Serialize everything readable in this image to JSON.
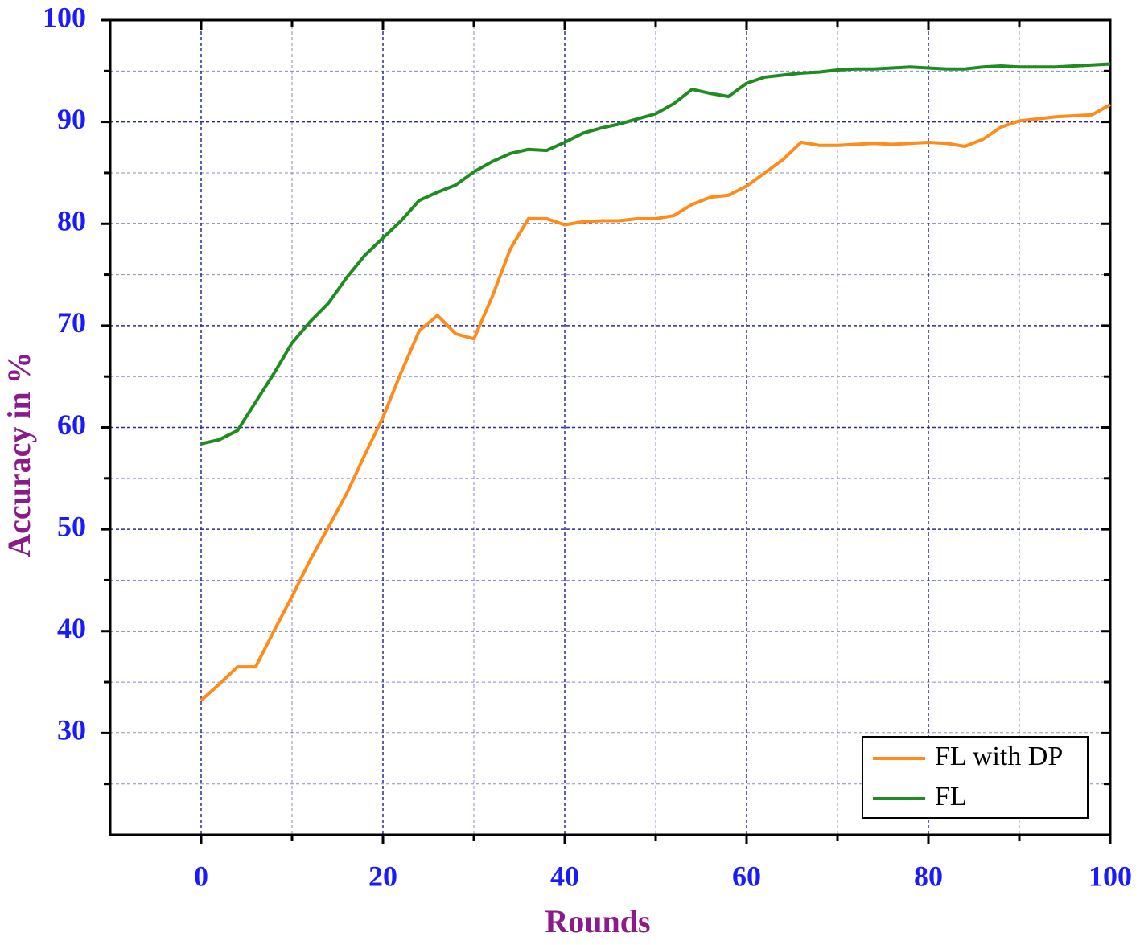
{
  "chart_data": {
    "type": "line",
    "x_label": "Rounds",
    "y_label": "Accuracy in %",
    "x": [
      0,
      2,
      4,
      6,
      8,
      10,
      12,
      14,
      16,
      18,
      20,
      22,
      24,
      26,
      28,
      30,
      32,
      34,
      36,
      38,
      40,
      42,
      44,
      46,
      48,
      50,
      52,
      54,
      56,
      58,
      60,
      62,
      64,
      66,
      68,
      70,
      72,
      74,
      76,
      78,
      80,
      82,
      84,
      86,
      88,
      90,
      92,
      94,
      96,
      98,
      100
    ],
    "series": [
      {
        "name": "FL with DP",
        "color": "#ff8c1a",
        "values": [
          33.2,
          34.8,
          36.5,
          36.5,
          40.0,
          43.4,
          47.0,
          50.2,
          53.5,
          57.3,
          61.0,
          65.4,
          69.5,
          71.0,
          69.2,
          68.7,
          72.8,
          77.5,
          80.5,
          80.5,
          79.9,
          80.2,
          80.3,
          80.3,
          80.5,
          80.5,
          80.8,
          81.9,
          82.6,
          82.8,
          83.7,
          85.0,
          86.3,
          88.0,
          87.7,
          87.7,
          87.8,
          87.9,
          87.8,
          87.9,
          88.0,
          87.9,
          87.6,
          88.3,
          89.5,
          90.1,
          90.3,
          90.5,
          90.6,
          90.7,
          91.7
        ]
      },
      {
        "name": "FL",
        "color": "#1e8c1e",
        "values": [
          58.4,
          58.8,
          59.7,
          62.5,
          65.3,
          68.3,
          70.4,
          72.2,
          74.7,
          76.9,
          78.6,
          80.3,
          82.3,
          83.1,
          83.8,
          85.1,
          86.1,
          86.9,
          87.3,
          87.2,
          88.0,
          88.9,
          89.4,
          89.8,
          90.3,
          90.8,
          91.8,
          93.2,
          92.8,
          92.5,
          93.8,
          94.4,
          94.6,
          94.8,
          94.9,
          95.1,
          95.2,
          95.2,
          95.3,
          95.4,
          95.3,
          95.2,
          95.2,
          95.4,
          95.5,
          95.4,
          95.4,
          95.4,
          95.5,
          95.6,
          95.7
        ]
      }
    ],
    "xlim": [
      -10,
      100
    ],
    "xticks": [
      0,
      20,
      40,
      60,
      80,
      100
    ],
    "xminorticks": [
      10,
      30,
      50,
      70,
      90
    ],
    "ylim": [
      20,
      100
    ],
    "yticks": [
      30,
      40,
      50,
      60,
      70,
      80,
      90,
      100
    ],
    "yminorticks": [
      25,
      35,
      45,
      55,
      65,
      75,
      85,
      95
    ],
    "grid": true,
    "legend": "lower right"
  }
}
